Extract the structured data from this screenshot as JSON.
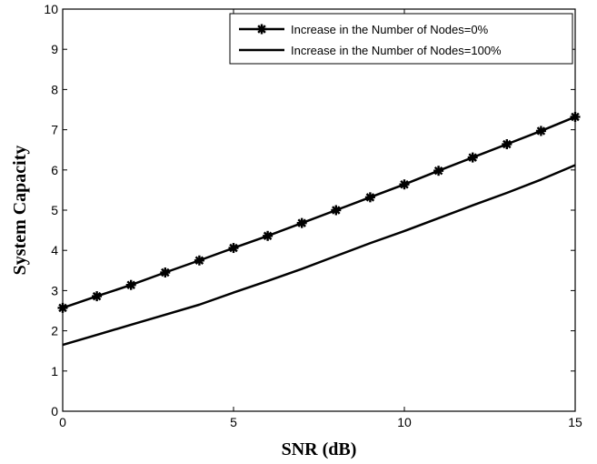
{
  "chart_data": {
    "type": "line",
    "xlabel": "SNR (dB)",
    "ylabel": "System Capacity",
    "xlim": [
      0,
      15
    ],
    "ylim": [
      0,
      10
    ],
    "xticks": [
      0,
      5,
      10,
      15
    ],
    "yticks": [
      0,
      1,
      2,
      3,
      4,
      5,
      6,
      7,
      8,
      9,
      10
    ],
    "grid": true,
    "legend_position": "top-right",
    "x": [
      0,
      1,
      2,
      3,
      4,
      5,
      6,
      7,
      8,
      9,
      10,
      11,
      12,
      13,
      14,
      15
    ],
    "series": [
      {
        "name": "Increase in the Number of Nodes=0%",
        "marker": "star",
        "color": "#000000",
        "values": [
          2.57,
          2.86,
          3.14,
          3.45,
          3.75,
          4.06,
          4.36,
          4.68,
          5.0,
          5.32,
          5.64,
          5.98,
          6.31,
          6.64,
          6.97,
          7.32
        ]
      },
      {
        "name": "Increase in the Number of Nodes=100%",
        "marker": "none",
        "color": "#000000",
        "values": [
          1.65,
          1.9,
          2.15,
          2.4,
          2.65,
          2.95,
          3.24,
          3.54,
          3.86,
          4.18,
          4.48,
          4.8,
          5.12,
          5.43,
          5.76,
          6.12
        ]
      }
    ]
  }
}
